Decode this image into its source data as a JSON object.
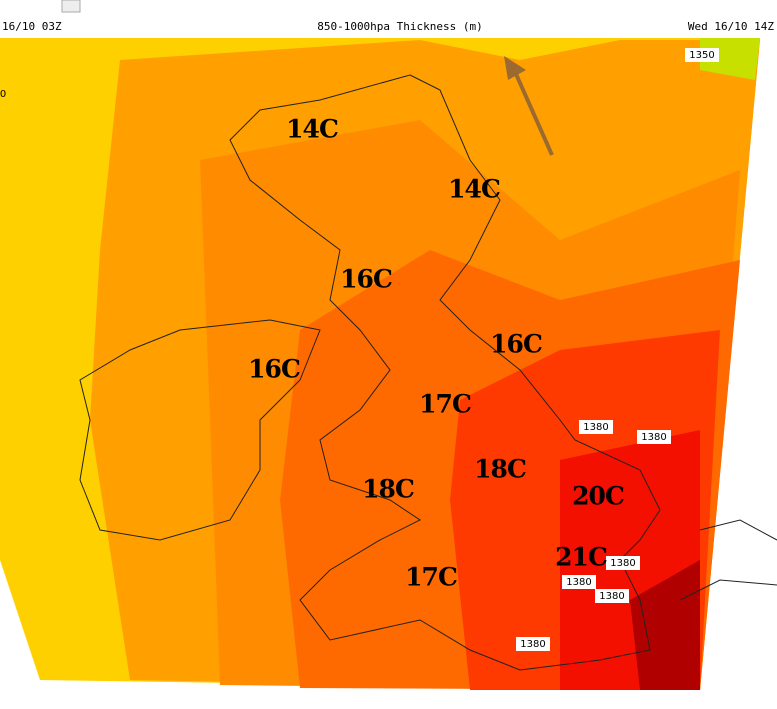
{
  "header": {
    "left": "16/10 03Z",
    "title": "850-1000hpa Thickness (m)",
    "right": "Wed 16/10 14Z"
  },
  "temperature_labels": [
    "14C",
    "14C",
    "16C",
    "16C",
    "16C",
    "17C",
    "18C",
    "18C",
    "20C",
    "21C",
    "17C"
  ],
  "contour_labels": [
    "1350",
    "0",
    "1380",
    "1380",
    "1380",
    "1380",
    "1380",
    "1380"
  ]
}
